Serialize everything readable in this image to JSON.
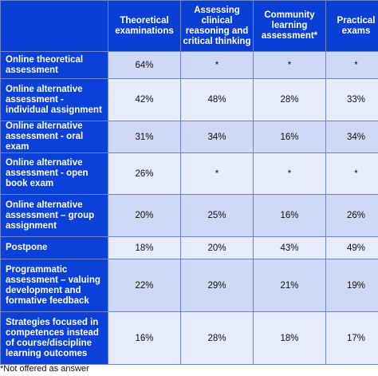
{
  "table": {
    "columns": [
      "Theoretical examinations",
      "Assessing clinical reasoning and critical thinking",
      "Community learning assessment*",
      "Practical exams"
    ],
    "rows": [
      {
        "label": "Online theoretical assessment",
        "values": [
          "64%",
          "*",
          "*",
          "*"
        ]
      },
      {
        "label": "Online alternative assessment - individual assignment",
        "values": [
          "42%",
          "48%",
          "28%",
          "33%"
        ]
      },
      {
        "label": "Online alternative assessment - oral exam",
        "values": [
          "31%",
          "34%",
          "16%",
          "34%"
        ]
      },
      {
        "label": "Online alternative assessment - open book exam",
        "values": [
          "26%",
          "*",
          "*",
          "*"
        ]
      },
      {
        "label": "Online alternative assessment – group assignment",
        "values": [
          "20%",
          "25%",
          "16%",
          "26%"
        ]
      },
      {
        "label": "Postpone",
        "values": [
          "18%",
          "20%",
          "43%",
          "49%"
        ]
      },
      {
        "label": "Programmatic assessment – valuing development and formative feedback",
        "values": [
          "22%",
          "29%",
          "21%",
          "19%"
        ]
      },
      {
        "label": "Strategies focused in competences instead of course/discipline learning outcomes",
        "values": [
          "16%",
          "28%",
          "18%",
          "17%"
        ]
      }
    ]
  },
  "footnote": "*Not offered as answer"
}
